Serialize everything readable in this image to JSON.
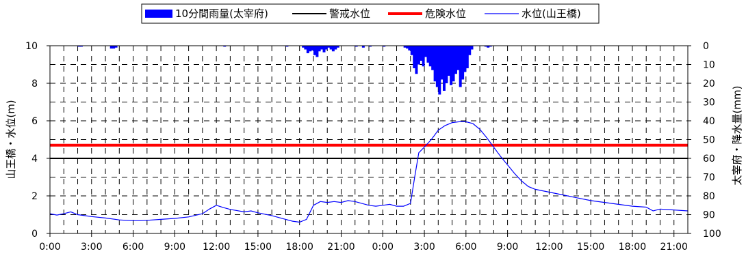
{
  "chart_data": {
    "type": "line",
    "legend": {
      "placement": "top-center",
      "entries": [
        {
          "key": "rain",
          "label": "10分間雨量(太宰府)",
          "color": "#0000ff",
          "style": "bar"
        },
        {
          "key": "warn",
          "label": "警戒水位",
          "color": "#000000",
          "style": "line"
        },
        {
          "key": "danger",
          "label": "危険水位",
          "color": "#ff0000",
          "style": "line"
        },
        {
          "key": "level",
          "label": "水位(山王橋)",
          "color": "#0000ff",
          "style": "thin-line"
        }
      ]
    },
    "x_axis": {
      "unit": "hours",
      "range": [
        0,
        46
      ],
      "tick_labels": [
        "0:00",
        "3:00",
        "6:00",
        "9:00",
        "12:00",
        "15:00",
        "18:00",
        "21:00",
        "0:00",
        "3:00",
        "6:00",
        "9:00",
        "12:00",
        "15:00",
        "18:00",
        "21:00"
      ],
      "grid": "dashed-every-hour"
    },
    "y_left": {
      "label": "山王橋・水位(m)",
      "range": [
        0,
        10
      ],
      "tick_labels": [
        "0",
        "2",
        "4",
        "6",
        "8",
        "10"
      ]
    },
    "y_right": {
      "label": "太宰府・降水量(mm)",
      "range": [
        0,
        100
      ],
      "inverted": true,
      "tick_labels": [
        "0",
        "10",
        "20",
        "30",
        "40",
        "50",
        "60",
        "70",
        "80",
        "90",
        "100"
      ]
    },
    "thresholds": [
      {
        "name": "警戒水位",
        "value": 4.0,
        "color": "#000000"
      },
      {
        "name": "危険水位",
        "value": 4.7,
        "color": "#ff0000"
      }
    ],
    "water_level": {
      "name": "水位(山王橋)",
      "color": "#0000ff",
      "points": [
        [
          0.0,
          1.05
        ],
        [
          0.5,
          0.98
        ],
        [
          1.0,
          1.05
        ],
        [
          1.5,
          1.15
        ],
        [
          2.0,
          1.0
        ],
        [
          2.5,
          0.95
        ],
        [
          3.0,
          0.9
        ],
        [
          4.0,
          0.82
        ],
        [
          5.0,
          0.72
        ],
        [
          5.5,
          0.7
        ],
        [
          6.0,
          0.68
        ],
        [
          6.5,
          0.68
        ],
        [
          7.0,
          0.7
        ],
        [
          8.0,
          0.75
        ],
        [
          9.0,
          0.8
        ],
        [
          10.0,
          0.88
        ],
        [
          11.0,
          1.05
        ],
        [
          11.5,
          1.3
        ],
        [
          12.0,
          1.5
        ],
        [
          12.5,
          1.38
        ],
        [
          13.0,
          1.28
        ],
        [
          14.0,
          1.15
        ],
        [
          14.5,
          1.2
        ],
        [
          15.0,
          1.1
        ],
        [
          16.0,
          0.95
        ],
        [
          17.0,
          0.75
        ],
        [
          17.5,
          0.65
        ],
        [
          18.0,
          0.6
        ],
        [
          18.5,
          0.75
        ],
        [
          19.0,
          1.5
        ],
        [
          19.5,
          1.7
        ],
        [
          20.0,
          1.65
        ],
        [
          20.5,
          1.7
        ],
        [
          21.0,
          1.65
        ],
        [
          21.5,
          1.75
        ],
        [
          22.0,
          1.7
        ],
        [
          23.0,
          1.5
        ],
        [
          23.5,
          1.45
        ],
        [
          24.0,
          1.5
        ],
        [
          24.5,
          1.55
        ],
        [
          25.0,
          1.45
        ],
        [
          25.5,
          1.45
        ],
        [
          26.0,
          1.6
        ],
        [
          26.3,
          3.0
        ],
        [
          26.6,
          4.3
        ],
        [
          27.0,
          4.6
        ],
        [
          27.5,
          5.0
        ],
        [
          28.0,
          5.5
        ],
        [
          28.5,
          5.75
        ],
        [
          29.0,
          5.9
        ],
        [
          29.5,
          5.95
        ],
        [
          30.0,
          5.95
        ],
        [
          30.5,
          5.85
        ],
        [
          31.0,
          5.55
        ],
        [
          31.5,
          5.1
        ],
        [
          32.0,
          4.6
        ],
        [
          32.5,
          4.1
        ],
        [
          33.0,
          3.65
        ],
        [
          33.5,
          3.2
        ],
        [
          34.0,
          2.8
        ],
        [
          34.5,
          2.5
        ],
        [
          35.0,
          2.35
        ],
        [
          36.0,
          2.2
        ],
        [
          37.0,
          2.05
        ],
        [
          38.0,
          1.9
        ],
        [
          39.0,
          1.75
        ],
        [
          40.0,
          1.65
        ],
        [
          41.0,
          1.55
        ],
        [
          42.0,
          1.45
        ],
        [
          43.0,
          1.4
        ],
        [
          43.5,
          1.2
        ],
        [
          44.0,
          1.3
        ],
        [
          45.0,
          1.25
        ],
        [
          46.0,
          1.2
        ]
      ]
    },
    "rainfall": {
      "name": "10分間雨量(太宰府)",
      "color": "#0000ff",
      "unit": "mm",
      "bars": [
        [
          2.0,
          0.5
        ],
        [
          2.17,
          0.5
        ],
        [
          4.33,
          1.5
        ],
        [
          4.5,
          1.5
        ],
        [
          4.67,
          1.0
        ],
        [
          12.5,
          0.5
        ],
        [
          17.0,
          0.5
        ],
        [
          18.17,
          1.0
        ],
        [
          18.33,
          2.0
        ],
        [
          18.5,
          4.0
        ],
        [
          18.67,
          3.0
        ],
        [
          18.83,
          2.5
        ],
        [
          19.0,
          5.0
        ],
        [
          19.17,
          6.0
        ],
        [
          19.33,
          3.0
        ],
        [
          19.5,
          2.0
        ],
        [
          19.67,
          3.5
        ],
        [
          19.83,
          2.0
        ],
        [
          20.0,
          1.0
        ],
        [
          20.17,
          2.0
        ],
        [
          20.33,
          3.0
        ],
        [
          20.5,
          2.0
        ],
        [
          20.67,
          1.0
        ],
        [
          22.0,
          0.5
        ],
        [
          22.5,
          1.0
        ],
        [
          23.0,
          0.5
        ],
        [
          24.0,
          0.5
        ],
        [
          25.5,
          1.0
        ],
        [
          25.67,
          1.5
        ],
        [
          25.83,
          2.5
        ],
        [
          26.0,
          5.0
        ],
        [
          26.17,
          12.0
        ],
        [
          26.33,
          15.0
        ],
        [
          26.5,
          10.0
        ],
        [
          26.67,
          8.0
        ],
        [
          26.83,
          11.0
        ],
        [
          27.0,
          6.0
        ],
        [
          27.17,
          9.0
        ],
        [
          27.33,
          11.0
        ],
        [
          27.5,
          13.0
        ],
        [
          27.67,
          19.0
        ],
        [
          27.83,
          22.0
        ],
        [
          28.0,
          26.0
        ],
        [
          28.17,
          18.0
        ],
        [
          28.33,
          24.0
        ],
        [
          28.5,
          20.0
        ],
        [
          28.67,
          16.0
        ],
        [
          28.83,
          21.0
        ],
        [
          29.0,
          19.0
        ],
        [
          29.17,
          15.0
        ],
        [
          29.33,
          13.0
        ],
        [
          29.5,
          22.0
        ],
        [
          29.67,
          18.0
        ],
        [
          29.83,
          14.0
        ],
        [
          30.0,
          12.0
        ],
        [
          30.17,
          5.0
        ],
        [
          30.33,
          2.0
        ],
        [
          31.33,
          0.5
        ],
        [
          31.5,
          1.0
        ],
        [
          31.67,
          0.5
        ]
      ]
    }
  }
}
